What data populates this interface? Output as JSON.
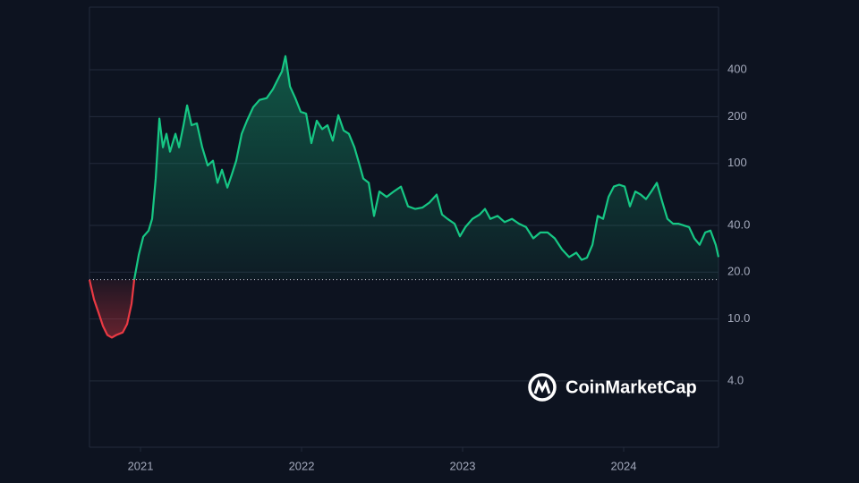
{
  "chart_data": {
    "type": "line",
    "log_scale": true,
    "grid": true,
    "watermark": "CoinMarketCap",
    "baseline": 17.9,
    "colors": {
      "up": "#16c784",
      "down": "#ea3943"
    },
    "xlim": [
      2020.683,
      2024.589
    ],
    "xticks": [
      2021,
      2022,
      2023,
      2024
    ],
    "ylim": [
      1.5,
      1010
    ],
    "yticks": [
      {
        "value": 4,
        "label": "4.0"
      },
      {
        "value": 10,
        "label": "10.0"
      },
      {
        "value": 20,
        "label": "20.0"
      },
      {
        "value": 40,
        "label": "40.0"
      },
      100,
      200,
      400
    ],
    "x": [
      2020.683,
      2020.711,
      2020.739,
      2020.767,
      2020.794,
      2020.822,
      2020.85,
      2020.889,
      2020.917,
      2020.944,
      2020.961,
      2020.989,
      2021.017,
      2021.05,
      2021.072,
      2021.094,
      2021.117,
      2021.139,
      2021.161,
      2021.183,
      2021.217,
      2021.239,
      2021.267,
      2021.289,
      2021.317,
      2021.35,
      2021.383,
      2021.417,
      2021.45,
      2021.478,
      2021.506,
      2021.539,
      2021.567,
      2021.594,
      2021.628,
      2021.661,
      2021.7,
      2021.739,
      2021.783,
      2021.822,
      2021.85,
      2021.878,
      2021.9,
      2021.928,
      2021.961,
      2021.994,
      2022.028,
      2022.061,
      2022.094,
      2022.128,
      2022.161,
      2022.194,
      2022.228,
      2022.261,
      2022.294,
      2022.328,
      2022.361,
      2022.383,
      2022.417,
      2022.45,
      2022.483,
      2022.528,
      2022.572,
      2022.617,
      2022.661,
      2022.706,
      2022.75,
      2022.794,
      2022.839,
      2022.872,
      2022.906,
      2022.95,
      2022.983,
      2023.017,
      2023.061,
      2023.106,
      2023.139,
      2023.172,
      2023.217,
      2023.261,
      2023.306,
      2023.35,
      2023.394,
      2023.439,
      2023.483,
      2023.528,
      2023.572,
      2023.617,
      2023.661,
      2023.706,
      2023.739,
      2023.772,
      2023.806,
      2023.839,
      2023.872,
      2023.906,
      2023.939,
      2023.972,
      2024.006,
      2024.039,
      2024.072,
      2024.106,
      2024.139,
      2024.172,
      2024.206,
      2024.239,
      2024.272,
      2024.306,
      2024.339,
      2024.372,
      2024.406,
      2024.439,
      2024.472,
      2024.506,
      2024.539,
      2024.572,
      2024.589
    ],
    "values": [
      17.9,
      13.4,
      11,
      9.0,
      7.9,
      7.6,
      7.9,
      8.2,
      9.3,
      12.5,
      17.9,
      25.9,
      33.8,
      37,
      44,
      80,
      194,
      127,
      155,
      119,
      155,
      127,
      176,
      236,
      176,
      181,
      127,
      97,
      104,
      75,
      91,
      70,
      85,
      104,
      155,
      188,
      230,
      256,
      263,
      300,
      342,
      390,
      489,
      312,
      263,
      215,
      209,
      135,
      188,
      166,
      176,
      140,
      204,
      163,
      155,
      127,
      97,
      80,
      75,
      46,
      66,
      61,
      66,
      71,
      53,
      51,
      52,
      56,
      63,
      47,
      44,
      41,
      34,
      39,
      44,
      47,
      51,
      44,
      46,
      42,
      44,
      41,
      39,
      33,
      36,
      36,
      33,
      28,
      25,
      26.7,
      24,
      24.8,
      30,
      46,
      44,
      61,
      71,
      73,
      71,
      53,
      66,
      63,
      59,
      66,
      75,
      57,
      44,
      41,
      41,
      40,
      39,
      33,
      30,
      36,
      37,
      30,
      25
    ]
  }
}
